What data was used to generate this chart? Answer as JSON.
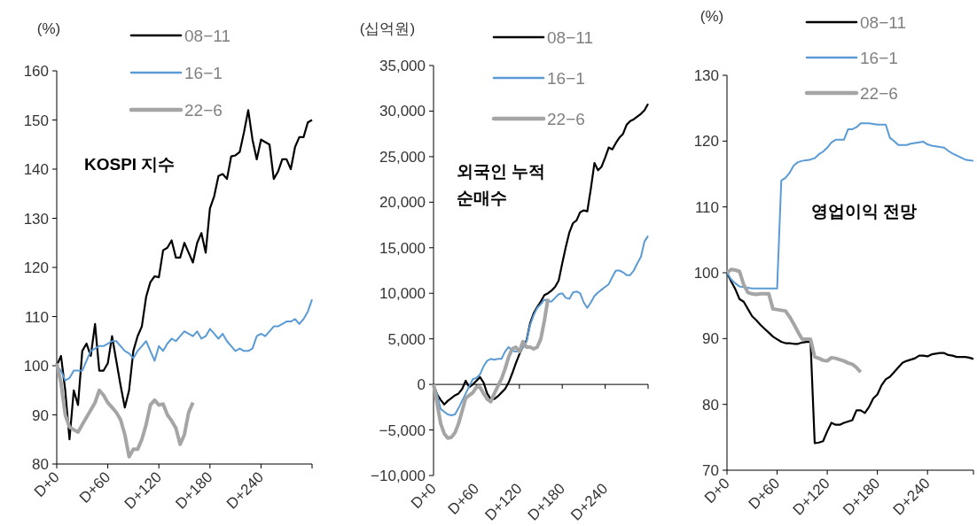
{
  "chart_data": [
    {
      "type": "line",
      "ylabel": "(%)",
      "annotations": [
        "KOSPI 지수"
      ],
      "legend": "top",
      "grid": false,
      "ylim": [
        80,
        160
      ],
      "yticks": [
        80,
        90,
        100,
        110,
        120,
        130,
        140,
        150,
        160
      ],
      "categories": [
        "D+0",
        null,
        null,
        null,
        null,
        null,
        null,
        null,
        null,
        null,
        null,
        null,
        "D+60",
        null,
        null,
        null,
        null,
        null,
        null,
        null,
        null,
        null,
        null,
        null,
        "D+120",
        null,
        null,
        null,
        null,
        null,
        null,
        null,
        null,
        null,
        null,
        null,
        "D+180",
        null,
        null,
        null,
        null,
        null,
        null,
        null,
        null,
        null,
        null,
        null,
        "D+240",
        null,
        null,
        null,
        null,
        null,
        null,
        null,
        null,
        null,
        null,
        null,
        null
      ],
      "series": [
        {
          "name": "08−11",
          "color": "#000000",
          "values": [
            100,
            102,
            95,
            85,
            95,
            92,
            103,
            104.5,
            102,
            108.5,
            99,
            99,
            100.5,
            106,
            101,
            96,
            91.5,
            95,
            103,
            106,
            108,
            114,
            117,
            118.2,
            118,
            123.5,
            124,
            125.5,
            122,
            122,
            125,
            123,
            121,
            125,
            127,
            123,
            132,
            134.5,
            138.6,
            139,
            138,
            142.6,
            142.8,
            143.5,
            147.5,
            152,
            146,
            142,
            146,
            145.5,
            145,
            138,
            139.5,
            142,
            142,
            140,
            144.5,
            146.5,
            146.5,
            149.5,
            150
          ]
        },
        {
          "name": "16−1",
          "color": "#5b9bd5",
          "values": [
            100,
            99,
            97,
            97.5,
            99,
            99,
            99,
            101,
            103,
            103.5,
            104,
            104,
            104.5,
            105,
            105,
            104,
            103,
            102.5,
            101.5,
            103,
            104,
            105,
            103,
            101,
            104,
            103,
            104.5,
            105.5,
            105,
            106,
            107,
            106.5,
            106,
            107,
            105.5,
            106,
            107.5,
            106.5,
            105.5,
            106.5,
            105,
            104,
            103,
            103.5,
            103,
            103,
            103.5,
            106,
            106.5,
            106,
            107,
            108,
            108,
            108.5,
            109,
            109,
            109.5,
            108.5,
            109.5,
            111,
            113.5
          ]
        },
        {
          "name": "22−6",
          "color": "#a5a5a5",
          "values": [
            100.5,
            96.5,
            90,
            87.5,
            87,
            86.5,
            88,
            89.5,
            91,
            92.5,
            95,
            94,
            92.5,
            91.5,
            90.5,
            89,
            86,
            81.5,
            83,
            83,
            85,
            88,
            92,
            93,
            92,
            92.2,
            90,
            88.8,
            87.3,
            84,
            86,
            90.5,
            92.5,
            null,
            null,
            null,
            null,
            null,
            null,
            null,
            null,
            null,
            null,
            null,
            null,
            null,
            null,
            null,
            null,
            null,
            null,
            null,
            null,
            null,
            null,
            null,
            null,
            null,
            null,
            null,
            null
          ]
        }
      ]
    },
    {
      "type": "line",
      "ylabel": "(십억원)",
      "annotations": [
        "외국인 누적 순매수"
      ],
      "legend": "top",
      "grid": false,
      "ref_lines": [
        {
          "axis": "y",
          "value": 0,
          "color": "#000000"
        }
      ],
      "ylim": [
        -10000,
        35000
      ],
      "yticks": [
        {
          "value": -10000,
          "label": "−10,000"
        },
        {
          "value": -5000,
          "label": "−5,000"
        },
        0,
        {
          "value": 5000,
          "label": "5,000"
        },
        {
          "value": 10000,
          "label": "10,000"
        },
        {
          "value": 15000,
          "label": "15,000"
        },
        {
          "value": 20000,
          "label": "20,000"
        },
        {
          "value": 25000,
          "label": "25,000"
        },
        {
          "value": 30000,
          "label": "30,000"
        },
        {
          "value": 35000,
          "label": "35,000"
        }
      ],
      "categories": [
        "D+0",
        null,
        null,
        null,
        null,
        null,
        null,
        null,
        null,
        null,
        null,
        null,
        "D+60",
        null,
        null,
        null,
        null,
        null,
        null,
        null,
        null,
        null,
        null,
        null,
        "D+120",
        null,
        null,
        null,
        null,
        null,
        null,
        null,
        null,
        null,
        null,
        null,
        "D+180",
        null,
        null,
        null,
        null,
        null,
        null,
        null,
        null,
        null,
        null,
        null,
        "D+240",
        null,
        null,
        null,
        null,
        null,
        null,
        null,
        null,
        null,
        null,
        null,
        null
      ],
      "series": [
        {
          "name": "08−11",
          "color": "#000000",
          "values": [
            0,
            -1100,
            -1700,
            -2200,
            -1800,
            -1500,
            -1200,
            -1000,
            -500,
            400,
            -300,
            0,
            400,
            800,
            200,
            -1000,
            -1600,
            -1600,
            -1300,
            -900,
            -500,
            200,
            1200,
            2300,
            3300,
            4200,
            4800,
            6700,
            7800,
            8500,
            9100,
            9800,
            10000,
            10300,
            10700,
            11400,
            13300,
            15100,
            16700,
            17700,
            18000,
            18900,
            19100,
            19000,
            21500,
            24300,
            23500,
            23900,
            24900,
            26000,
            25800,
            26500,
            27100,
            27500,
            28500,
            28900,
            29100,
            29400,
            29700,
            30100,
            30800
          ]
        },
        {
          "name": "16−1",
          "color": "#5b9bd5",
          "values": [
            0,
            -1100,
            -2700,
            -3000,
            -3300,
            -3400,
            -3300,
            -2600,
            -1800,
            -1000,
            -200,
            600,
            700,
            1100,
            2000,
            2600,
            2800,
            2700,
            2800,
            2800,
            3600,
            4100,
            3700,
            3600,
            3700,
            4000,
            4700,
            6500,
            7600,
            8400,
            8800,
            9300,
            9100,
            9100,
            9500,
            9900,
            10000,
            9500,
            9400,
            10100,
            10200,
            10000,
            9000,
            8400,
            9000,
            9700,
            10100,
            10400,
            10700,
            11000,
            11800,
            12500,
            12500,
            12300,
            12000,
            12000,
            12500,
            13300,
            14000,
            15700,
            16300
          ]
        },
        {
          "name": "22−6",
          "color": "#a5a5a5",
          "values": [
            0,
            -2100,
            -4300,
            -5400,
            -5900,
            -5800,
            -5300,
            -4300,
            -2900,
            -1500,
            -1200,
            -900,
            -300,
            -300,
            -1000,
            -1600,
            -1900,
            -1000,
            -200,
            600,
            1700,
            3000,
            3900,
            4100,
            3600,
            4700,
            4100,
            4100,
            3900,
            4100,
            5000,
            7000,
            9400,
            null,
            null,
            null,
            null,
            null,
            null,
            null,
            null,
            null,
            null,
            null,
            null,
            null,
            null,
            null,
            null,
            null,
            null,
            null,
            null,
            null,
            null,
            null,
            null,
            null,
            null,
            null,
            null
          ]
        }
      ]
    },
    {
      "type": "line",
      "ylabel": "(%)",
      "annotations": [
        "영업이익 전망"
      ],
      "legend": "top",
      "grid": false,
      "ylim": [
        70,
        130
      ],
      "yticks": [
        70,
        80,
        90,
        100,
        110,
        120,
        130
      ],
      "categories": [
        "D+0",
        null,
        null,
        null,
        null,
        null,
        null,
        null,
        null,
        null,
        null,
        null,
        "D+60",
        null,
        null,
        null,
        null,
        null,
        null,
        null,
        null,
        null,
        null,
        null,
        "D+120",
        null,
        null,
        null,
        null,
        null,
        null,
        null,
        null,
        null,
        null,
        null,
        "D+180",
        null,
        null,
        null,
        null,
        null,
        null,
        null,
        null,
        null,
        null,
        null,
        "D+240",
        null,
        null,
        null,
        null,
        null,
        null,
        null,
        null,
        null,
        null,
        null
      ],
      "series": [
        {
          "name": "08−11",
          "color": "#000000",
          "values": [
            100,
            98.7,
            97.5,
            96,
            95.6,
            94.5,
            93.4,
            92.8,
            92.1,
            91.5,
            90.9,
            90.3,
            89.9,
            89.5,
            89.3,
            89.3,
            89.2,
            89.2,
            89.4,
            89.5,
            89.5,
            74.1,
            74.2,
            74.4,
            75.9,
            77.2,
            76.9,
            76.9,
            77.2,
            77.4,
            77.6,
            79.1,
            79.1,
            78.7,
            79.6,
            80.9,
            81.5,
            82.9,
            83.8,
            84.2,
            84.9,
            85.6,
            86.3,
            86.6,
            86.8,
            87,
            87.4,
            87.4,
            87.3,
            87.6,
            87.7,
            87.8,
            87.8,
            87.5,
            87.4,
            87.2,
            87.2,
            87.2,
            87.1,
            86.9
          ]
        },
        {
          "name": "16−1",
          "color": "#5b9bd5",
          "values": [
            100,
            99,
            98.4,
            97.9,
            97.8,
            97.7,
            97.6,
            97.6,
            97.6,
            97.6,
            97.6,
            97.6,
            97.6,
            114,
            114.4,
            115.2,
            116.3,
            116.8,
            117,
            117.1,
            117.2,
            117.4,
            118,
            118.4,
            119,
            119.8,
            120.2,
            120.2,
            120.2,
            121.8,
            121.8,
            122.1,
            122.7,
            122.7,
            122.7,
            122.6,
            122.5,
            122.5,
            122.5,
            120.5,
            120,
            119.4,
            119.4,
            119.4,
            119.6,
            119.7,
            119.8,
            119.9,
            119.5,
            119.3,
            119.2,
            119.1,
            119,
            118.5,
            118.1,
            117.8,
            117.5,
            117.2,
            117.1,
            117
          ]
        },
        {
          "name": "22−6",
          "color": "#a5a5a5",
          "values": [
            100,
            100.5,
            100.4,
            100.2,
            98.2,
            97,
            96.8,
            96.7,
            96.8,
            96.8,
            96.8,
            94.5,
            94.4,
            94.3,
            94.2,
            93.3,
            92.2,
            91,
            89.9,
            89.9,
            89.9,
            87.2,
            87,
            86.7,
            86.6,
            87.1,
            87,
            86.8,
            86.6,
            86.3,
            86.1,
            85.6,
            84.9,
            null,
            null,
            null,
            null,
            null,
            null,
            null,
            null,
            null,
            null,
            null,
            null,
            null,
            null,
            null,
            null,
            null,
            null,
            null,
            null,
            null,
            null,
            null,
            null,
            null,
            null,
            null
          ]
        }
      ]
    }
  ]
}
